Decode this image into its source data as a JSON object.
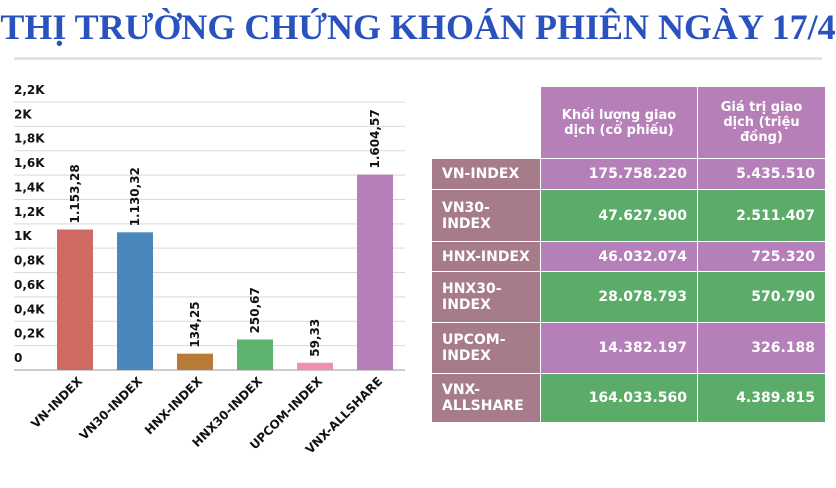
{
  "title": "THỊ TRƯỜNG CHỨNG KHOÁN PHIÊN NGÀY 17/4",
  "chart_data": {
    "type": "bar",
    "categories": [
      "VN-INDEX",
      "VN30-INDEX",
      "HNX-INDEX",
      "HNX30-INDEX",
      "UPCOM-INDEX",
      "VNX-ALLSHARE"
    ],
    "values": [
      1153.28,
      1130.32,
      134.25,
      250.67,
      59.33,
      1604.57
    ],
    "value_labels": [
      "1.153,28",
      "1.130,32",
      "134,25",
      "250,67",
      "59,33",
      "1.604,57"
    ],
    "colors": [
      "#d06b64",
      "#4a87ba",
      "#b87b35",
      "#5cb46e",
      "#f08fb0",
      "#b77fb8"
    ],
    "ylim": [
      0,
      2200
    ],
    "yticks": [
      0,
      {
        "value": 200,
        "label": "0,2K"
      },
      {
        "value": 400,
        "label": "0,4K"
      },
      {
        "value": 600,
        "label": "0,6K"
      },
      {
        "value": 800,
        "label": "0,8K"
      },
      {
        "value": 1000,
        "label": "1K"
      },
      {
        "value": 1200,
        "label": "1,2K"
      },
      {
        "value": 1400,
        "label": "1,4K"
      },
      {
        "value": 1600,
        "label": "1,6K"
      },
      {
        "value": 1800,
        "label": "1,8K"
      },
      {
        "value": 2000,
        "label": "2K"
      },
      {
        "value": 2200,
        "label": "2,2K"
      }
    ],
    "grid": true
  },
  "table": {
    "header": [
      "Khối lượng giao dịch (cổ phiếu)",
      "Giá trị giao dịch (triệu đồng)"
    ],
    "rows": [
      [
        "VN-INDEX",
        "175.758.220",
        "5.435.510"
      ],
      [
        "VN30-INDEX",
        "47.627.900",
        "2.511.407"
      ],
      [
        "HNX-INDEX",
        "46.032.074",
        "725.320"
      ],
      [
        "HNX30-INDEX",
        "28.078.793",
        "570.790"
      ],
      [
        "UPCOM-INDEX",
        "14.382.197",
        "326.188"
      ],
      [
        "VNX-ALLSHARE",
        "164.033.560",
        "4.389.815"
      ]
    ]
  }
}
